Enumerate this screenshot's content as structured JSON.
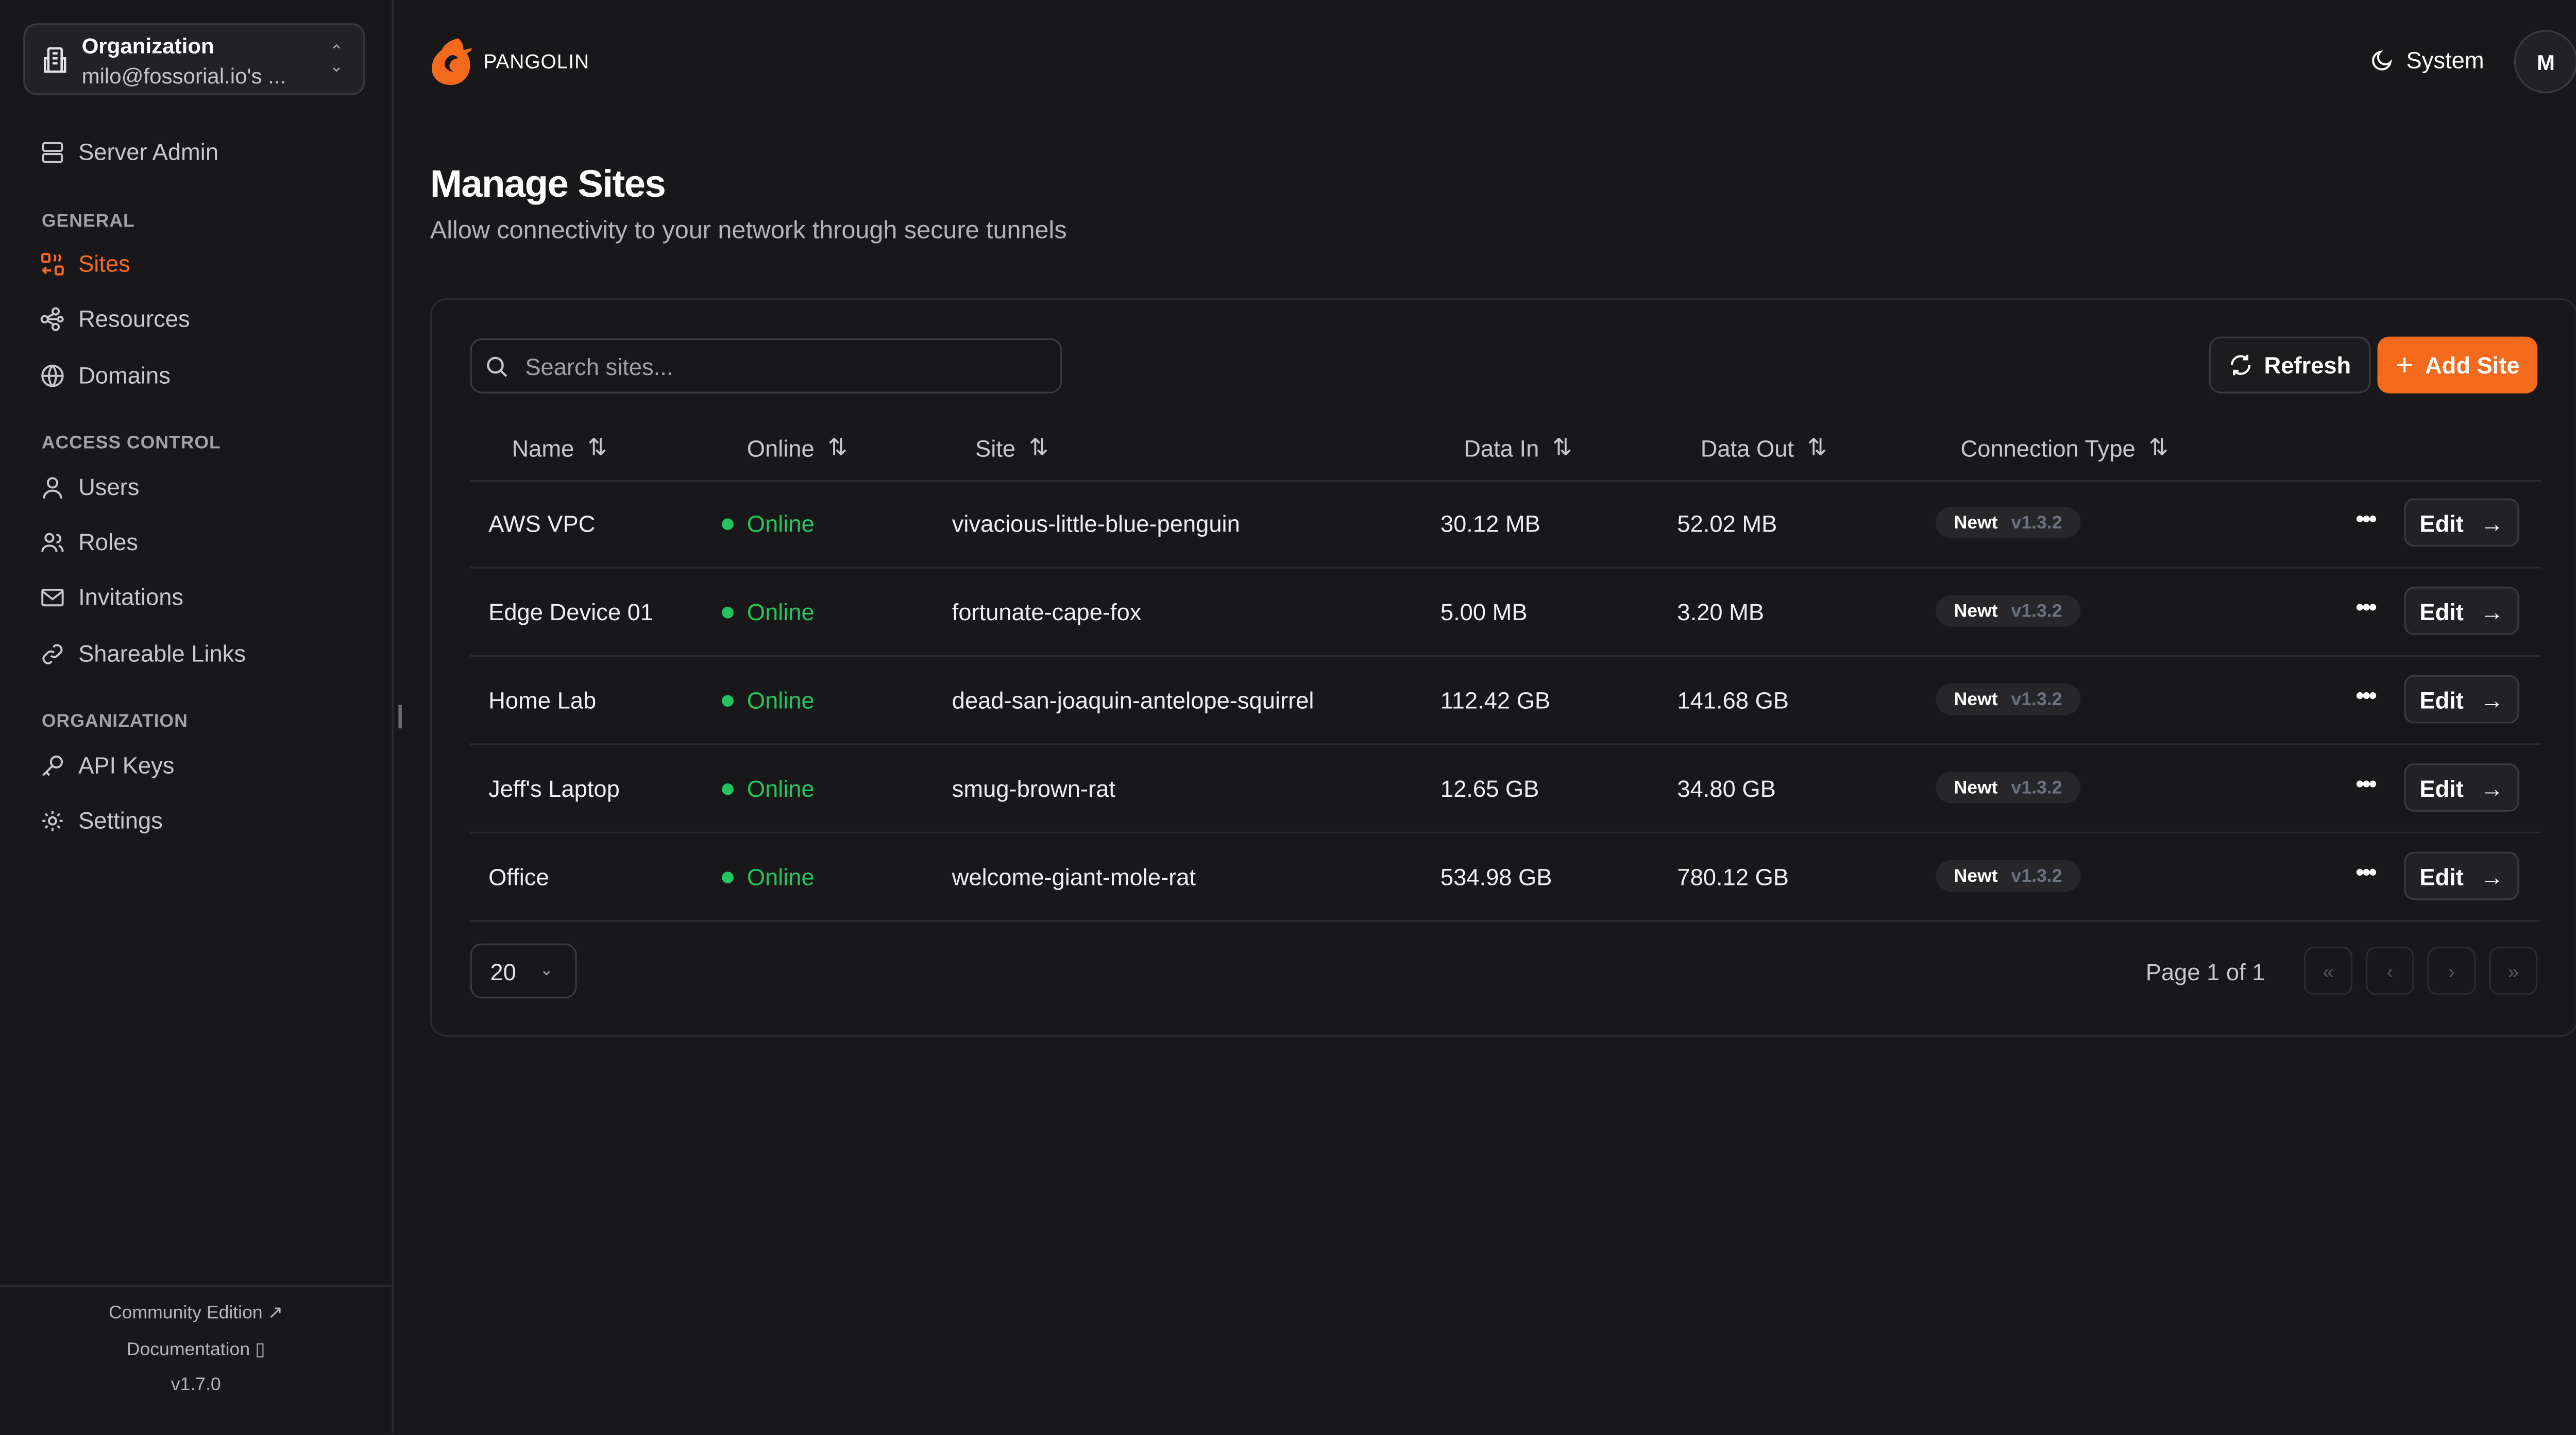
{
  "org": {
    "label": "Organization",
    "name": "milo@fossorial.io's ..."
  },
  "sidebar": {
    "server_admin": "Server Admin",
    "sections": [
      {
        "title": "GENERAL",
        "items": [
          {
            "label": "Sites",
            "active": true
          },
          {
            "label": "Resources"
          },
          {
            "label": "Domains"
          }
        ]
      },
      {
        "title": "ACCESS CONTROL",
        "items": [
          {
            "label": "Users"
          },
          {
            "label": "Roles"
          },
          {
            "label": "Invitations"
          },
          {
            "label": "Shareable Links"
          }
        ]
      },
      {
        "title": "ORGANIZATION",
        "items": [
          {
            "label": "API Keys"
          },
          {
            "label": "Settings"
          }
        ]
      }
    ],
    "footer": {
      "community": "Community Edition",
      "docs": "Documentation",
      "version": "v1.7.0"
    }
  },
  "header": {
    "brand": "PANGOLIN",
    "theme": "System",
    "avatar": "M"
  },
  "page": {
    "title": "Manage Sites",
    "subtitle": "Allow connectivity to your network through secure tunnels"
  },
  "toolbar": {
    "search_placeholder": "Search sites...",
    "refresh": "Refresh",
    "add": "Add Site"
  },
  "table": {
    "columns": [
      "Name",
      "Online",
      "Site",
      "Data In",
      "Data Out",
      "Connection Type"
    ],
    "rows": [
      {
        "name": "AWS VPC",
        "online": "Online",
        "site": "vivacious-little-blue-penguin",
        "in": "30.12 MB",
        "out": "52.02 MB",
        "type": "Newt",
        "version": "v1.3.2"
      },
      {
        "name": "Edge Device 01",
        "online": "Online",
        "site": "fortunate-cape-fox",
        "in": "5.00 MB",
        "out": "3.20 MB",
        "type": "Newt",
        "version": "v1.3.2"
      },
      {
        "name": "Home Lab",
        "online": "Online",
        "site": "dead-san-joaquin-antelope-squirrel",
        "in": "112.42 GB",
        "out": "141.68 GB",
        "type": "Newt",
        "version": "v1.3.2"
      },
      {
        "name": "Jeff's Laptop",
        "online": "Online",
        "site": "smug-brown-rat",
        "in": "12.65 GB",
        "out": "34.80 GB",
        "type": "Newt",
        "version": "v1.3.2"
      },
      {
        "name": "Office",
        "online": "Online",
        "site": "welcome-giant-mole-rat",
        "in": "534.98 GB",
        "out": "780.12 GB",
        "type": "Newt",
        "version": "v1.3.2"
      }
    ],
    "edit_label": "Edit"
  },
  "pagination": {
    "page_size": "20",
    "info": "Page 1 of 1"
  },
  "colors": {
    "accent": "#f36a1d",
    "online": "#22c55e",
    "background": "#18181b"
  }
}
